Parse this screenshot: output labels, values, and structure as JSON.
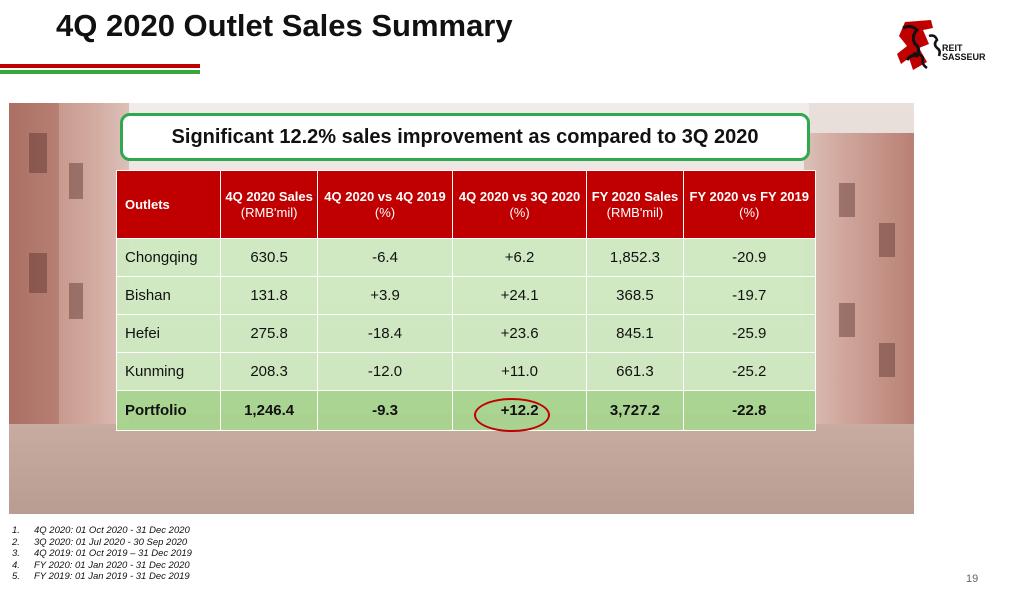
{
  "slide": {
    "title": "4Q 2020 Outlet Sales Summary",
    "headline": "Significant 12.2% sales improvement as compared to 3Q 2020",
    "page_number": "19",
    "colors": {
      "accent_red": "#c00000",
      "accent_green": "#2fa84f",
      "table_row": "#cee9c1",
      "portfolio_row": "#a8d491"
    }
  },
  "logo": {
    "line1": "REIT",
    "line2": "SASSEUR"
  },
  "table": {
    "headers": [
      {
        "title": "Outlets",
        "unit": ""
      },
      {
        "title": "4Q 2020 Sales",
        "unit": "(RMB'mil)"
      },
      {
        "title": "4Q 2020 vs 4Q 2019",
        "unit": "(%)"
      },
      {
        "title": "4Q 2020 vs 3Q 2020",
        "unit": "(%)"
      },
      {
        "title": "FY 2020 Sales",
        "unit": "(RMB'mil)"
      },
      {
        "title": "FY 2020 vs FY 2019",
        "unit": "(%)"
      }
    ],
    "rows": [
      [
        "Chongqing",
        "630.5",
        "-6.4",
        "+6.2",
        "1,852.3",
        "-20.9"
      ],
      [
        "Bishan",
        "131.8",
        "+3.9",
        "+24.1",
        "368.5",
        "-19.7"
      ],
      [
        "Hefei",
        "275.8",
        "-18.4",
        "+23.6",
        "845.1",
        "-25.9"
      ],
      [
        "Kunming",
        "208.3",
        "-12.0",
        "+11.0",
        "661.3",
        "-25.2"
      ],
      [
        "Portfolio",
        "1,246.4",
        "-9.3",
        "+12.2",
        "3,727.2",
        "-22.8"
      ]
    ]
  },
  "footnotes": [
    {
      "num": "1.",
      "text": "4Q 2020: 01 Oct 2020 - 31 Dec 2020"
    },
    {
      "num": "2.",
      "text": "3Q 2020: 01 Jul 2020 - 30 Sep 2020"
    },
    {
      "num": "3.",
      "text": "4Q 2019: 01 Oct 2019 – 31 Dec 2019"
    },
    {
      "num": "4.",
      "text": "FY 2020: 01 Jan 2020 - 31 Dec 2020"
    },
    {
      "num": "5.",
      "text": "FY 2019: 01 Jan 2019 - 31 Dec 2019"
    }
  ]
}
